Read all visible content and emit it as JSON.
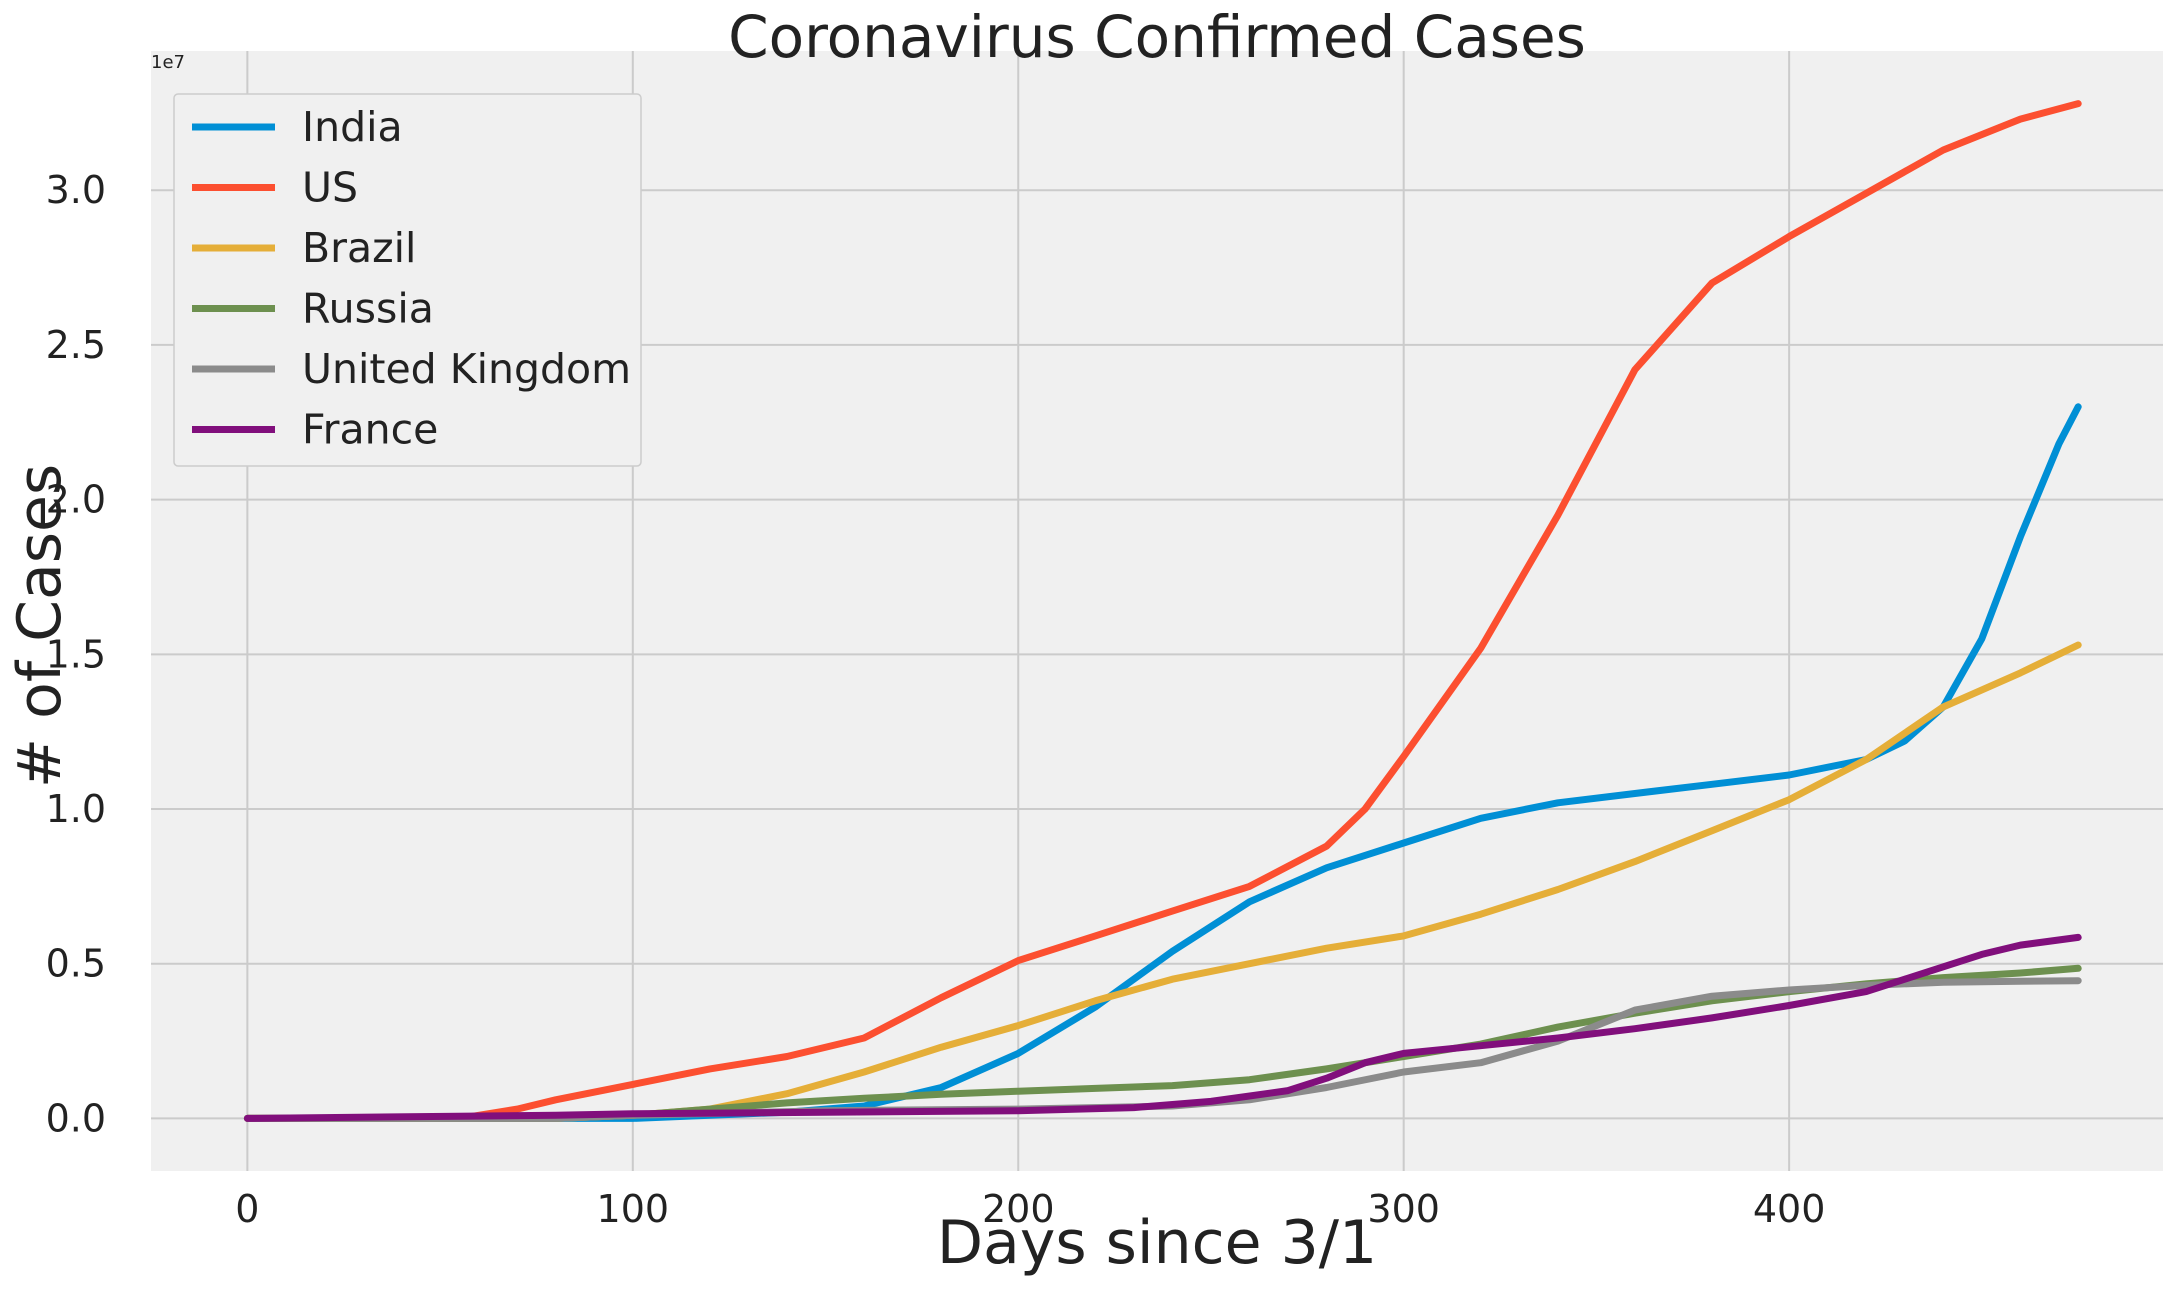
{
  "chart_data": {
    "type": "line",
    "title": "Coronavirus Confirmed Cases",
    "xlabel": "Days since 3/1",
    "ylabel": "# of Cases",
    "y_offset_label": "1e7",
    "xlim": [
      -25,
      497
    ],
    "ylim": [
      -1700000,
      34500000
    ],
    "x_ticks": [
      0,
      100,
      200,
      300,
      400
    ],
    "x_tick_labels": [
      "0",
      "100",
      "200",
      "300",
      "400"
    ],
    "y_ticks": [
      0,
      5000000,
      10000000,
      15000000,
      20000000,
      25000000,
      30000000
    ],
    "y_tick_labels": [
      "0.0",
      "0.5",
      "1.0",
      "1.5",
      "2.0",
      "2.5",
      "3.0"
    ],
    "grid": true,
    "legend_position": "upper-left",
    "series": [
      {
        "name": "India",
        "color": "#008fd5",
        "x": [
          0,
          60,
          100,
          120,
          140,
          160,
          180,
          200,
          220,
          240,
          260,
          280,
          300,
          320,
          340,
          360,
          380,
          400,
          420,
          430,
          440,
          450,
          460,
          470,
          475
        ],
        "values": [
          0,
          0,
          0,
          100000,
          200000,
          400000,
          1000000,
          2100000,
          3600000,
          5400000,
          7000000,
          8100000,
          8900000,
          9700000,
          10200000,
          10500000,
          10800000,
          11100000,
          11600000,
          12200000,
          13300000,
          15500000,
          18800000,
          21800000,
          23000000
        ]
      },
      {
        "name": "US",
        "color": "#fc4f30",
        "x": [
          0,
          55,
          70,
          80,
          100,
          120,
          140,
          160,
          180,
          200,
          220,
          240,
          260,
          280,
          290,
          300,
          320,
          340,
          360,
          380,
          400,
          420,
          440,
          460,
          475
        ],
        "values": [
          0,
          0,
          300000,
          600000,
          1100000,
          1600000,
          2000000,
          2600000,
          3900000,
          5100000,
          5900000,
          6700000,
          7500000,
          8800000,
          10000000,
          11700000,
          15200000,
          19500000,
          24200000,
          27000000,
          28500000,
          29900000,
          31300000,
          32300000,
          32800000
        ]
      },
      {
        "name": "Brazil",
        "color": "#e5ae38",
        "x": [
          0,
          80,
          100,
          120,
          140,
          160,
          180,
          200,
          220,
          240,
          260,
          280,
          300,
          320,
          340,
          360,
          380,
          400,
          420,
          440,
          460,
          475
        ],
        "values": [
          0,
          0,
          100000,
          300000,
          800000,
          1500000,
          2300000,
          3000000,
          3800000,
          4500000,
          5000000,
          5500000,
          5900000,
          6600000,
          7400000,
          8300000,
          9300000,
          10300000,
          11600000,
          13300000,
          14400000,
          15300000
        ]
      },
      {
        "name": "Russia",
        "color": "#6d904f",
        "x": [
          0,
          80,
          100,
          120,
          140,
          160,
          180,
          200,
          220,
          240,
          260,
          280,
          300,
          320,
          340,
          360,
          380,
          400,
          420,
          440,
          460,
          475
        ],
        "values": [
          0,
          0,
          100000,
          300000,
          500000,
          650000,
          780000,
          880000,
          970000,
          1060000,
          1250000,
          1600000,
          2000000,
          2400000,
          2950000,
          3400000,
          3800000,
          4100000,
          4350000,
          4550000,
          4700000,
          4850000
        ]
      },
      {
        "name": "United Kingdom",
        "color": "#8b8b8b",
        "x": [
          0,
          80,
          100,
          150,
          200,
          240,
          260,
          280,
          300,
          320,
          340,
          360,
          380,
          400,
          420,
          440,
          460,
          475
        ],
        "values": [
          0,
          0,
          100000,
          250000,
          300000,
          400000,
          600000,
          1000000,
          1500000,
          1800000,
          2500000,
          3500000,
          3950000,
          4150000,
          4300000,
          4400000,
          4430000,
          4450000
        ]
      },
      {
        "name": "France",
        "color": "#810f7c",
        "x": [
          0,
          80,
          100,
          150,
          200,
          230,
          250,
          270,
          280,
          290,
          300,
          320,
          340,
          360,
          380,
          400,
          420,
          430,
          440,
          450,
          460,
          475
        ],
        "values": [
          0,
          100000,
          150000,
          200000,
          250000,
          350000,
          550000,
          900000,
          1300000,
          1800000,
          2100000,
          2350000,
          2600000,
          2900000,
          3250000,
          3650000,
          4100000,
          4500000,
          4900000,
          5300000,
          5600000,
          5850000
        ]
      }
    ]
  },
  "style": {
    "plot_background": "#f0f0f0",
    "grid_color": "#cbcbcb"
  }
}
